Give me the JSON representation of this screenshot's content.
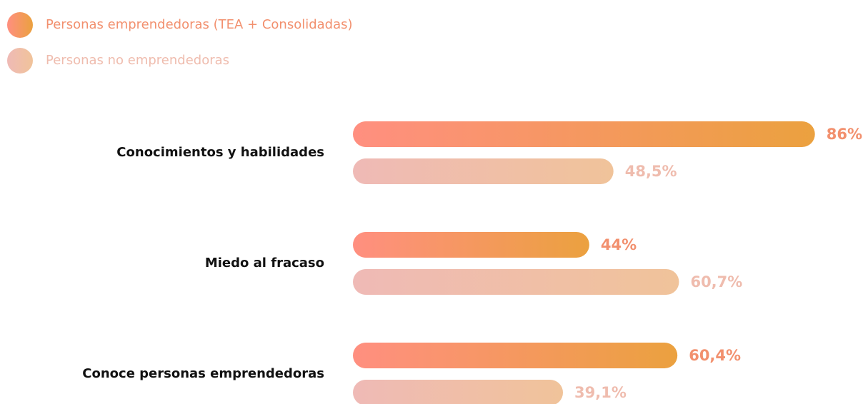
{
  "chart_data": {
    "type": "barh",
    "categories": [
      "Conocimientos y habilidades",
      "Miedo al fracaso",
      "Conoce personas emprendedoras"
    ],
    "series": [
      {
        "name": "Personas emprendedoras (TEA + Consolidadas)",
        "colors": [
          "#ff8f80",
          "#eba13f"
        ],
        "values": [
          86,
          44,
          60.4
        ],
        "value_labels": [
          "86%",
          "44%",
          "60,4%"
        ]
      },
      {
        "name": "Personas no emprendedoras",
        "colors": [
          "#efbab6",
          "#f0c39a"
        ],
        "values": [
          48.5,
          60.7,
          39.1
        ],
        "value_labels": [
          "48,5%",
          "60,7%",
          "39,1%"
        ]
      }
    ],
    "xlim": [
      0,
      100
    ],
    "legend": "top-left"
  }
}
